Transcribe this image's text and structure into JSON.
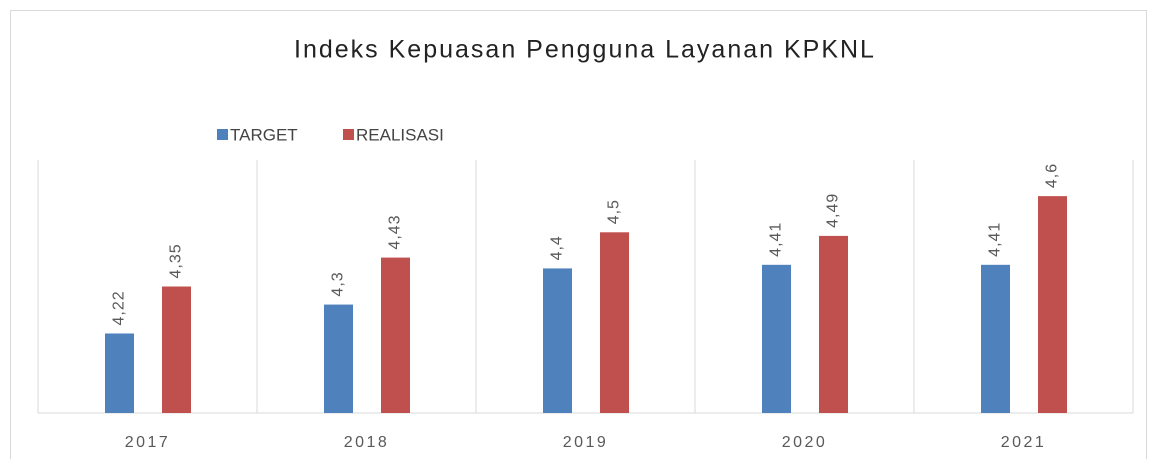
{
  "chart_data": {
    "type": "bar",
    "title": "Indeks Kepuasan Pengguna Layanan KPKNL",
    "categories": [
      "2017",
      "2018",
      "2019",
      "2020",
      "2021"
    ],
    "series": [
      {
        "name": "TARGET",
        "color": "#4f81bd",
        "values": [
          4.22,
          4.3,
          4.4,
          4.41,
          4.41
        ],
        "value_labels": [
          "4,22",
          "4,3",
          "4,4",
          "4,41",
          "4,41"
        ]
      },
      {
        "name": "REALISASI",
        "color": "#c0504d",
        "values": [
          4.35,
          4.43,
          4.5,
          4.49,
          4.6
        ],
        "value_labels": [
          "4,35",
          "4,43",
          "4,5",
          "4,49",
          "4,6"
        ]
      }
    ],
    "ylim": [
      4,
      4.7
    ],
    "grid": true,
    "legend": "top"
  }
}
